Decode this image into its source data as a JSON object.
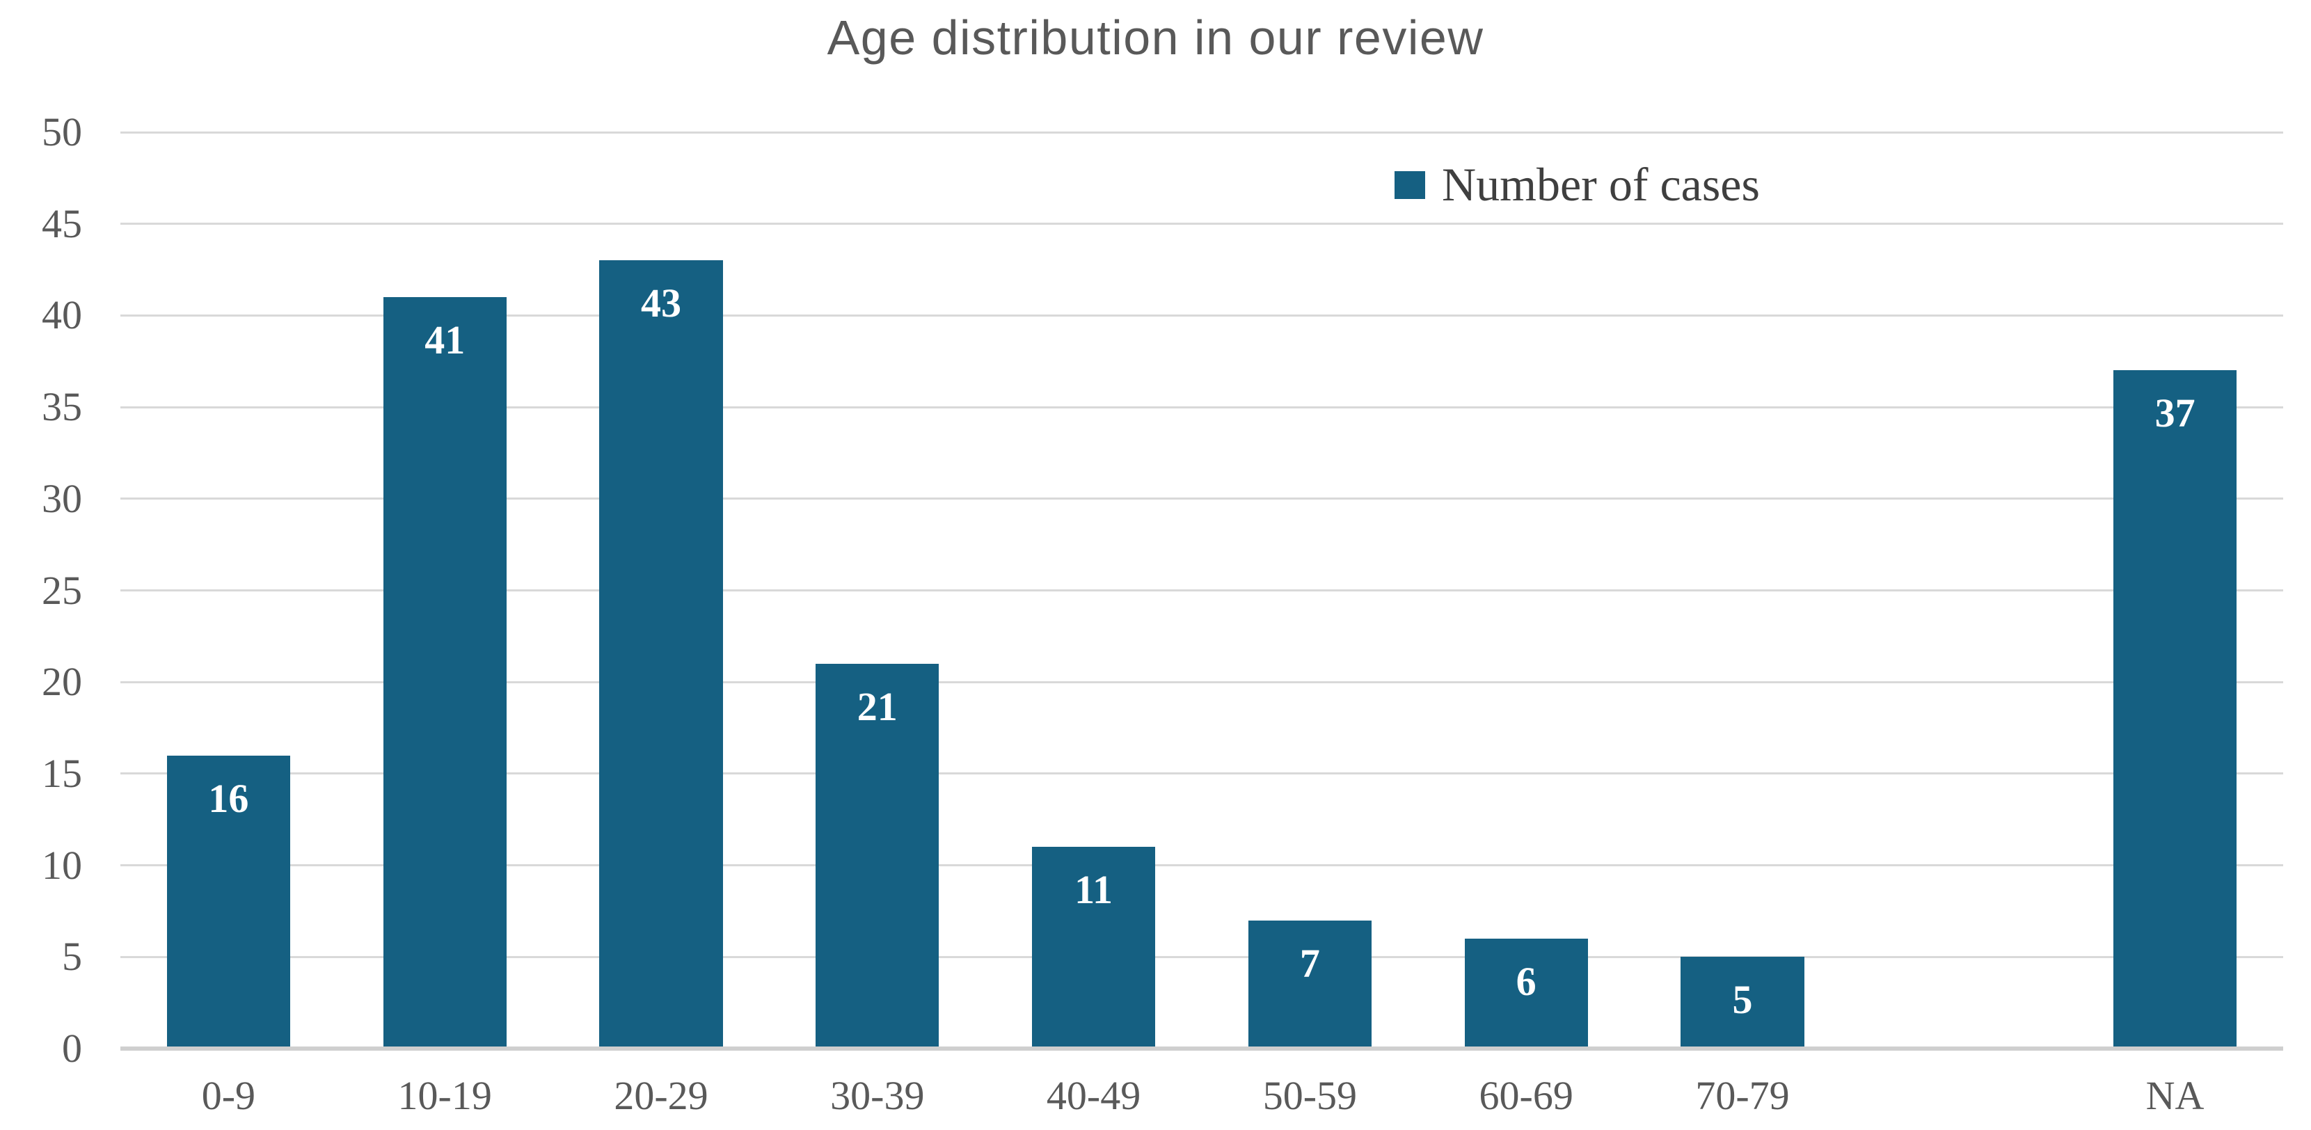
{
  "title": "Age distribution in our review",
  "legend": {
    "label": "Number of cases",
    "marker_color": "#156082"
  },
  "colors": {
    "bar": "#156082",
    "gridline": "#D9D9D9",
    "axis_line": "#CFCFCF",
    "title_text": "#595959",
    "axis_text": "#595959",
    "legend_text": "#3F3F3F",
    "value_label": "#FFFFFF",
    "background": "#FFFFFF"
  },
  "chart_data": {
    "type": "bar",
    "title": "Age distribution in our review",
    "categories": [
      "0-9",
      "10-19",
      "20-29",
      "30-39",
      "40-49",
      "50-59",
      "60-69",
      "70-79",
      "",
      "NA"
    ],
    "series": [
      {
        "name": "Number of cases",
        "values": [
          16,
          41,
          43,
          21,
          11,
          7,
          6,
          5,
          null,
          37
        ]
      }
    ],
    "xlabel": "",
    "ylabel": "",
    "ylim": [
      0,
      50
    ],
    "yticks": [
      0,
      5,
      10,
      15,
      20,
      25,
      30,
      35,
      40,
      45,
      50
    ],
    "grid": true,
    "legend_position": "top-right",
    "value_labels": "inside-top"
  }
}
